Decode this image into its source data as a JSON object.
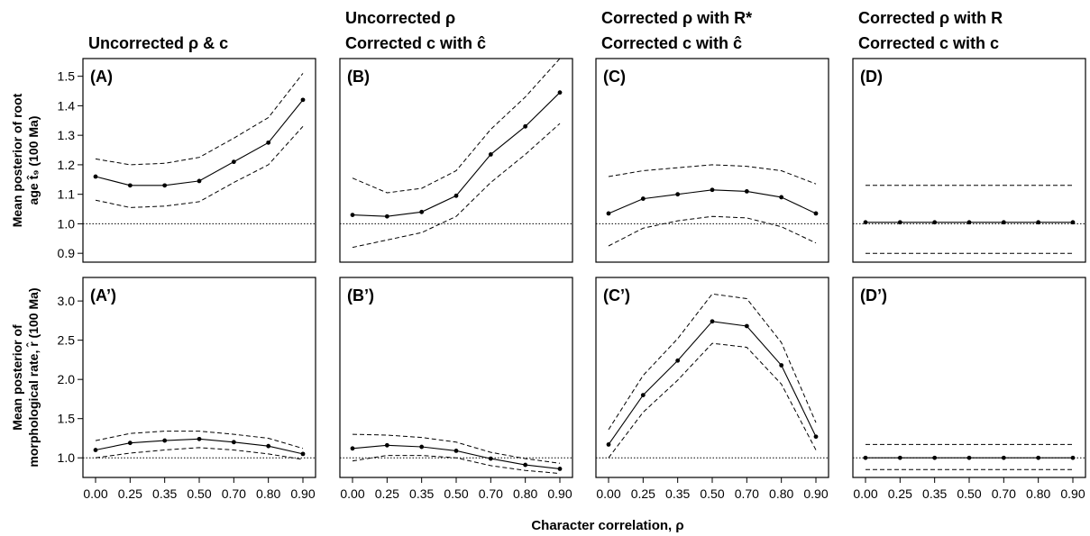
{
  "figure": {
    "x_axis_title": "Character correlation, ρ",
    "y_axis_titles": {
      "top": [
        "Mean posterior of root",
        "age t̂₉ (100 Ma)"
      ],
      "bottom": [
        "Mean posterior of",
        "morphological rate, r̂ (100 Ma)"
      ]
    },
    "columns": [
      {
        "title_lines": [
          "Uncorrected ρ & c"
        ]
      },
      {
        "title_lines": [
          "Uncorrected ρ",
          "Corrected c with ĉ"
        ]
      },
      {
        "title_lines": [
          "Corrected ρ with R*",
          "Corrected c with ĉ"
        ]
      },
      {
        "title_lines": [
          "Corrected ρ with R",
          "Corrected c with c"
        ]
      }
    ]
  },
  "chart_data": [
    {
      "panel": "(A)",
      "type": "line",
      "row": "top",
      "x": [
        0.0,
        0.25,
        0.35,
        0.5,
        0.7,
        0.8,
        0.9
      ],
      "x_tick_labels": [
        "0.00",
        "0.25",
        "0.35",
        "0.50",
        "0.70",
        "0.80",
        "0.90"
      ],
      "mean": [
        1.16,
        1.13,
        1.13,
        1.145,
        1.21,
        1.275,
        1.42
      ],
      "lower": [
        1.08,
        1.055,
        1.06,
        1.075,
        1.14,
        1.2,
        1.33
      ],
      "upper": [
        1.22,
        1.2,
        1.205,
        1.225,
        1.29,
        1.36,
        1.51
      ],
      "reference": 1.0,
      "ylim": [
        0.87,
        1.56
      ],
      "yticks": [
        0.9,
        1.0,
        1.1,
        1.2,
        1.3,
        1.4,
        1.5
      ],
      "grid": false
    },
    {
      "panel": "(B)",
      "type": "line",
      "row": "top",
      "x": [
        0.0,
        0.25,
        0.35,
        0.5,
        0.7,
        0.8,
        0.9
      ],
      "x_tick_labels": [
        "0.00",
        "0.25",
        "0.35",
        "0.50",
        "0.70",
        "0.80",
        "0.90"
      ],
      "mean": [
        1.03,
        1.025,
        1.04,
        1.095,
        1.235,
        1.33,
        1.445
      ],
      "lower": [
        0.92,
        0.945,
        0.97,
        1.025,
        1.14,
        1.235,
        1.34
      ],
      "upper": [
        1.155,
        1.105,
        1.12,
        1.18,
        1.32,
        1.43,
        1.56
      ],
      "reference": 1.0,
      "ylim": [
        0.87,
        1.56
      ],
      "yticks": [
        0.9,
        1.0,
        1.1,
        1.2,
        1.3,
        1.4,
        1.5
      ],
      "grid": false
    },
    {
      "panel": "(C)",
      "type": "line",
      "row": "top",
      "x": [
        0.0,
        0.25,
        0.35,
        0.5,
        0.7,
        0.8,
        0.9
      ],
      "x_tick_labels": [
        "0.00",
        "0.25",
        "0.35",
        "0.50",
        "0.70",
        "0.80",
        "0.90"
      ],
      "mean": [
        1.035,
        1.085,
        1.1,
        1.115,
        1.11,
        1.09,
        1.035
      ],
      "lower": [
        0.925,
        0.985,
        1.01,
        1.025,
        1.02,
        0.99,
        0.935
      ],
      "upper": [
        1.16,
        1.18,
        1.19,
        1.2,
        1.195,
        1.18,
        1.135
      ],
      "reference": 1.0,
      "ylim": [
        0.87,
        1.56
      ],
      "yticks": [
        0.9,
        1.0,
        1.1,
        1.2,
        1.3,
        1.4,
        1.5
      ],
      "grid": false
    },
    {
      "panel": "(D)",
      "type": "line",
      "row": "top",
      "x": [
        0.0,
        0.25,
        0.35,
        0.5,
        0.7,
        0.8,
        0.9
      ],
      "x_tick_labels": [
        "0.00",
        "0.25",
        "0.35",
        "0.50",
        "0.70",
        "0.80",
        "0.90"
      ],
      "mean": [
        1.005,
        1.005,
        1.005,
        1.005,
        1.005,
        1.005,
        1.005
      ],
      "lower": [
        0.9,
        0.9,
        0.9,
        0.9,
        0.9,
        0.9,
        0.9
      ],
      "upper": [
        1.13,
        1.13,
        1.13,
        1.13,
        1.13,
        1.13,
        1.13
      ],
      "reference": 1.0,
      "ylim": [
        0.87,
        1.56
      ],
      "yticks": [
        0.9,
        1.0,
        1.1,
        1.2,
        1.3,
        1.4,
        1.5
      ],
      "grid": false
    },
    {
      "panel": "(A’)",
      "type": "line",
      "row": "bottom",
      "x": [
        0.0,
        0.25,
        0.35,
        0.5,
        0.7,
        0.8,
        0.9
      ],
      "x_tick_labels": [
        "0.00",
        "0.25",
        "0.35",
        "0.50",
        "0.70",
        "0.80",
        "0.90"
      ],
      "mean": [
        1.1,
        1.19,
        1.22,
        1.24,
        1.2,
        1.15,
        1.05
      ],
      "lower": [
        1.0,
        1.06,
        1.1,
        1.13,
        1.1,
        1.05,
        0.98
      ],
      "upper": [
        1.22,
        1.31,
        1.34,
        1.34,
        1.3,
        1.25,
        1.12
      ],
      "reference": 1.0,
      "ylim": [
        0.75,
        3.3
      ],
      "yticks": [
        1.0,
        1.5,
        2.0,
        2.5,
        3.0
      ],
      "grid": false
    },
    {
      "panel": "(B’)",
      "type": "line",
      "row": "bottom",
      "x": [
        0.0,
        0.25,
        0.35,
        0.5,
        0.7,
        0.8,
        0.9
      ],
      "x_tick_labels": [
        "0.00",
        "0.25",
        "0.35",
        "0.50",
        "0.70",
        "0.80",
        "0.90"
      ],
      "mean": [
        1.12,
        1.16,
        1.14,
        1.09,
        0.99,
        0.91,
        0.86
      ],
      "lower": [
        0.96,
        1.03,
        1.03,
        1.0,
        0.9,
        0.84,
        0.8
      ],
      "upper": [
        1.3,
        1.29,
        1.26,
        1.2,
        1.07,
        0.99,
        0.93
      ],
      "reference": 1.0,
      "ylim": [
        0.75,
        3.3
      ],
      "yticks": [
        1.0,
        1.5,
        2.0,
        2.5,
        3.0
      ],
      "grid": false
    },
    {
      "panel": "(C’)",
      "type": "line",
      "row": "bottom",
      "x": [
        0.0,
        0.25,
        0.35,
        0.5,
        0.7,
        0.8,
        0.9
      ],
      "x_tick_labels": [
        "0.00",
        "0.25",
        "0.35",
        "0.50",
        "0.70",
        "0.80",
        "0.90"
      ],
      "mean": [
        1.17,
        1.8,
        2.24,
        2.74,
        2.68,
        2.18,
        1.27
      ],
      "lower": [
        1.0,
        1.58,
        1.99,
        2.46,
        2.41,
        1.94,
        1.1
      ],
      "upper": [
        1.36,
        2.05,
        2.52,
        3.09,
        3.03,
        2.47,
        1.45
      ],
      "reference": 1.0,
      "ylim": [
        0.75,
        3.3
      ],
      "yticks": [
        1.0,
        1.5,
        2.0,
        2.5,
        3.0
      ],
      "grid": false
    },
    {
      "panel": "(D’)",
      "type": "line",
      "row": "bottom",
      "x": [
        0.0,
        0.25,
        0.35,
        0.5,
        0.7,
        0.8,
        0.9
      ],
      "x_tick_labels": [
        "0.00",
        "0.25",
        "0.35",
        "0.50",
        "0.70",
        "0.80",
        "0.90"
      ],
      "mean": [
        1.0,
        1.0,
        1.0,
        1.0,
        1.0,
        1.0,
        1.0
      ],
      "lower": [
        0.85,
        0.85,
        0.85,
        0.85,
        0.85,
        0.85,
        0.85
      ],
      "upper": [
        1.17,
        1.17,
        1.17,
        1.17,
        1.17,
        1.17,
        1.17
      ],
      "reference": 1.0,
      "ylim": [
        0.75,
        3.3
      ],
      "yticks": [
        1.0,
        1.5,
        2.0,
        2.5,
        3.0
      ],
      "grid": false
    }
  ]
}
